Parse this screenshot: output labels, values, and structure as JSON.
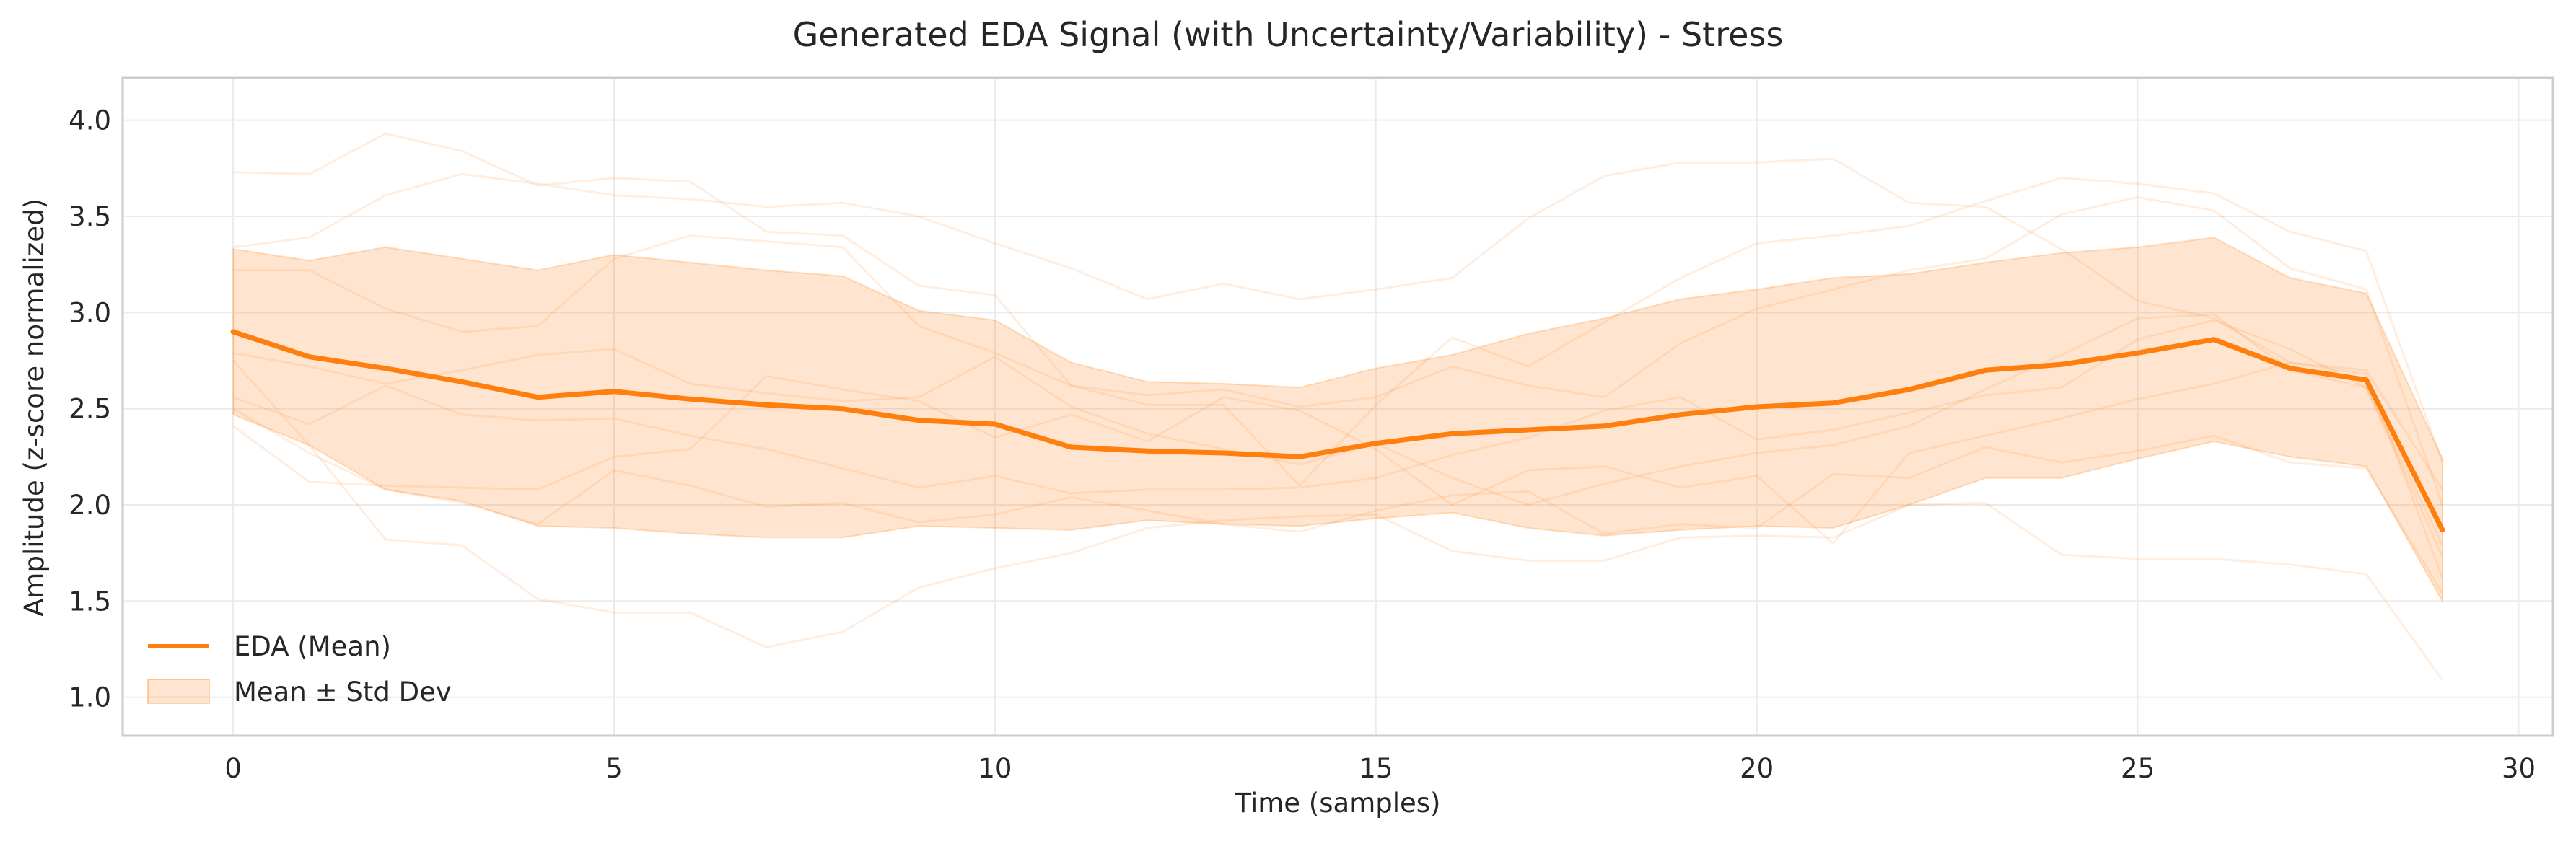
{
  "chart_data": {
    "type": "line",
    "title": "Generated EDA Signal (with Uncertainty/Variability) - Stress",
    "xlabel": "Time (samples)",
    "ylabel": "Amplitude (z-score normalized)",
    "xlim": [
      -1.45,
      30.45
    ],
    "ylim": [
      0.8,
      4.22
    ],
    "xticks": [
      0,
      5,
      10,
      15,
      20,
      25,
      30
    ],
    "yticks": [
      1.0,
      1.5,
      2.0,
      2.5,
      3.0,
      3.5,
      4.0
    ],
    "grid": true,
    "legend_position": "lower-left",
    "color": "#ff7f0e",
    "x": [
      0,
      1,
      2,
      3,
      4,
      5,
      6,
      7,
      8,
      9,
      10,
      11,
      12,
      13,
      14,
      15,
      16,
      17,
      18,
      19,
      20,
      21,
      22,
      23,
      24,
      25,
      26,
      27,
      28,
      29
    ],
    "series": [
      {
        "name": "EDA (Mean)",
        "values": [
          2.9,
          2.77,
          2.71,
          2.64,
          2.56,
          2.59,
          2.55,
          2.52,
          2.5,
          2.44,
          2.42,
          2.3,
          2.28,
          2.27,
          2.25,
          2.32,
          2.37,
          2.39,
          2.41,
          2.47,
          2.51,
          2.53,
          2.6,
          2.7,
          2.73,
          2.79,
          2.86,
          2.71,
          2.65,
          1.87
        ]
      }
    ],
    "band": {
      "name": "Mean ± Std Dev",
      "lower": [
        2.47,
        2.31,
        2.08,
        2.02,
        1.89,
        1.88,
        1.85,
        1.83,
        1.83,
        1.89,
        1.88,
        1.87,
        1.92,
        1.9,
        1.89,
        1.93,
        1.96,
        1.88,
        1.84,
        1.87,
        1.89,
        1.88,
        2.0,
        2.14,
        2.14,
        2.24,
        2.33,
        2.25,
        2.2,
        1.5
      ],
      "upper": [
        3.33,
        3.27,
        3.34,
        3.28,
        3.22,
        3.3,
        3.26,
        3.22,
        3.19,
        3.01,
        2.96,
        2.74,
        2.64,
        2.63,
        2.61,
        2.71,
        2.78,
        2.89,
        2.97,
        3.07,
        3.12,
        3.18,
        3.2,
        3.26,
        3.31,
        3.34,
        3.39,
        3.18,
        3.1,
        2.24
      ]
    },
    "samples": [
      [
        3.73,
        3.72,
        3.93,
        3.84,
        3.66,
        3.7,
        3.68,
        3.42,
        3.4,
        3.14,
        3.09,
        2.62,
        2.52,
        2.52,
        2.1,
        2.52,
        2.87,
        2.72,
        2.95,
        3.18,
        3.36,
        3.4,
        3.45,
        3.58,
        3.7,
        3.67,
        3.62,
        3.42,
        3.32,
        2.22
      ],
      [
        3.34,
        3.39,
        3.61,
        3.72,
        3.67,
        3.61,
        3.59,
        3.55,
        3.57,
        3.5,
        3.36,
        3.23,
        3.07,
        3.15,
        3.07,
        3.12,
        3.18,
        3.49,
        3.71,
        3.78,
        3.78,
        3.8,
        3.57,
        3.55,
        3.33,
        3.06,
        2.97,
        2.74,
        2.7,
        2.08
      ],
      [
        3.22,
        3.22,
        3.02,
        2.9,
        2.93,
        3.28,
        3.4,
        3.37,
        3.34,
        2.93,
        2.79,
        2.62,
        2.57,
        2.6,
        2.51,
        2.56,
        2.72,
        2.62,
        2.56,
        2.84,
        3.02,
        3.12,
        3.22,
        3.28,
        3.51,
        3.6,
        3.53,
        3.23,
        3.12,
        2.0
      ],
      [
        2.79,
        2.72,
        2.63,
        2.7,
        2.78,
        2.81,
        2.63,
        2.58,
        2.54,
        2.56,
        2.77,
        2.51,
        2.37,
        2.29,
        2.21,
        2.32,
        2.14,
        2.0,
        2.11,
        2.2,
        2.27,
        2.31,
        2.41,
        2.6,
        2.78,
        2.97,
        2.99,
        2.7,
        2.61,
        1.79
      ],
      [
        2.56,
        2.42,
        2.62,
        2.47,
        2.44,
        2.45,
        2.36,
        2.29,
        2.19,
        2.09,
        2.15,
        2.06,
        2.08,
        2.08,
        2.09,
        2.14,
        2.26,
        2.35,
        2.49,
        2.56,
        2.34,
        2.39,
        2.48,
        2.57,
        2.61,
        2.86,
        2.96,
        2.81,
        2.61,
        1.73
      ],
      [
        2.41,
        2.12,
        2.1,
        2.09,
        2.08,
        2.25,
        2.29,
        2.67,
        2.6,
        2.54,
        2.35,
        2.47,
        2.33,
        2.56,
        2.49,
        2.29,
        2.0,
        2.18,
        2.2,
        2.09,
        2.15,
        1.8,
        2.27,
        2.36,
        2.45,
        2.55,
        2.63,
        2.74,
        2.68,
        1.62
      ],
      [
        2.75,
        2.31,
        1.82,
        1.79,
        1.51,
        1.44,
        1.44,
        1.26,
        1.34,
        1.57,
        1.67,
        1.75,
        1.88,
        1.92,
        1.94,
        1.95,
        1.76,
        1.71,
        1.71,
        1.83,
        1.84,
        1.83,
        2.0,
        2.01,
        1.74,
        1.72,
        1.72,
        1.69,
        1.64,
        1.09
      ],
      [
        2.5,
        2.27,
        2.08,
        2.01,
        1.9,
        2.18,
        2.1,
        1.99,
        2.01,
        1.91,
        1.95,
        2.04,
        1.97,
        1.9,
        1.86,
        1.97,
        2.05,
        2.07,
        1.85,
        1.9,
        1.88,
        2.16,
        2.14,
        2.3,
        2.22,
        2.28,
        2.36,
        2.22,
        2.19,
        1.54
      ]
    ]
  }
}
